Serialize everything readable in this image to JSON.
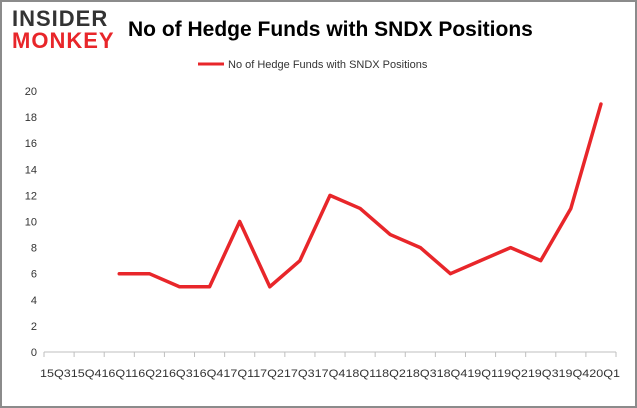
{
  "brand": {
    "logo_top": "INSIDER",
    "logo_bottom": "MONKEY"
  },
  "chart_data": {
    "type": "line",
    "title": "No of Hedge Funds with SNDX Positions",
    "xlabel": "",
    "ylabel": "",
    "categories": [
      "2015Q3",
      "2015Q4",
      "2016Q1",
      "2016Q2",
      "2016Q3",
      "2016Q4",
      "2017Q1",
      "2017Q2",
      "2017Q3",
      "2017Q4",
      "2018Q1",
      "2018Q2",
      "2018Q3",
      "2018Q4",
      "2019Q1",
      "2019Q2",
      "2019Q3",
      "2019Q4",
      "2020Q1"
    ],
    "tick_labels_shown": "15Q315Q416Q116Q216Q316Q417Q117Q217Q317Q418Q118Q218Q318Q419Q119Q219Q319Q420Q1",
    "series": [
      {
        "name": "No of Hedge Funds with SNDX Positions",
        "color": "#e8262a",
        "values": [
          null,
          null,
          6,
          6,
          5,
          5,
          10,
          5,
          7,
          12,
          11,
          9,
          8,
          6,
          7,
          8,
          7,
          11,
          19
        ]
      }
    ],
    "ylim": [
      0,
      20
    ],
    "yticks": [
      0,
      2,
      4,
      6,
      8,
      10,
      12,
      14,
      16,
      18,
      20
    ],
    "grid": false,
    "legend": "top-center"
  }
}
